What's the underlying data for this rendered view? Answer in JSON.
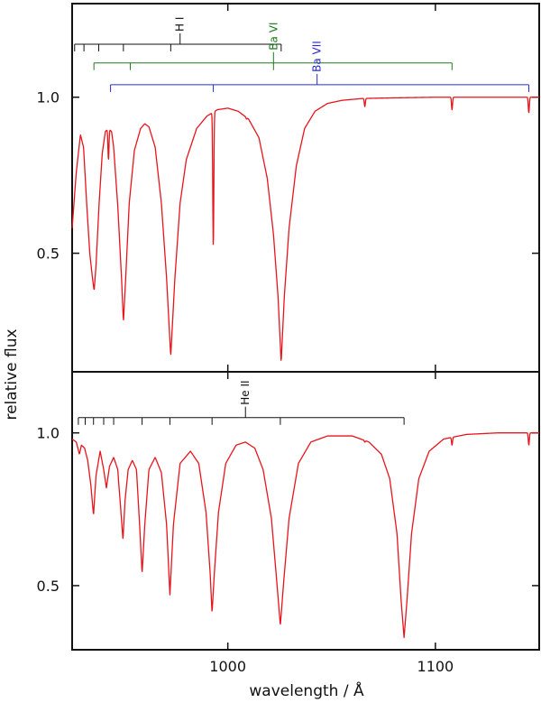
{
  "chart_data": {
    "type": "line",
    "xlabel": "wavelength / Å",
    "ylabel": "relative flux",
    "xlim": [
      925,
      1150
    ],
    "x_ticks": [
      1000,
      1100
    ],
    "series_color": "#e8141c",
    "panels": [
      {
        "id": "top",
        "ylim": [
          0.12,
          1.3
        ],
        "y_ticks": [
          0.5,
          1.0
        ],
        "y_tick_labels": [
          "0.5",
          "1.0"
        ],
        "line_ids": [
          {
            "label": "H I",
            "color": "#111111",
            "bar_y": 1.17,
            "label_x": 977,
            "positions": [
              926.2,
              930.7,
              937.8,
              949.7,
              972.5,
              1025.7
            ]
          },
          {
            "label": "Ba VI",
            "color": "#1e7a1e",
            "bar_y": 1.11,
            "label_x": 1022,
            "positions": [
              935.5,
              953.0,
              1022.0,
              1108.0
            ]
          },
          {
            "label": "Ba VII",
            "color": "#2a2acf",
            "bar_y": 1.04,
            "label_x": 1043,
            "positions": [
              943.5,
              993.0,
              1145.0
            ]
          }
        ],
        "continuum": [
          [
            925,
            0.58
          ],
          [
            927,
            0.76
          ],
          [
            929,
            0.88
          ],
          [
            930.5,
            0.84
          ],
          [
            932,
            0.66
          ],
          [
            933.5,
            0.5
          ],
          [
            934.8,
            0.42
          ],
          [
            935.6,
            0.38
          ],
          [
            936.5,
            0.46
          ],
          [
            938,
            0.66
          ],
          [
            939.5,
            0.82
          ],
          [
            941,
            0.89
          ],
          [
            942.5,
            0.9
          ],
          [
            944,
            0.89
          ],
          [
            945,
            0.84
          ],
          [
            947,
            0.65
          ],
          [
            948.8,
            0.42
          ],
          [
            949.7,
            0.28
          ],
          [
            950.8,
            0.42
          ],
          [
            952.5,
            0.66
          ],
          [
            955,
            0.83
          ],
          [
            958,
            0.9
          ],
          [
            960,
            0.915
          ],
          [
            962,
            0.905
          ],
          [
            965,
            0.84
          ],
          [
            968,
            0.66
          ],
          [
            970.5,
            0.42
          ],
          [
            972.5,
            0.17
          ],
          [
            974.5,
            0.42
          ],
          [
            977,
            0.66
          ],
          [
            980,
            0.8
          ],
          [
            985,
            0.9
          ],
          [
            990,
            0.94
          ],
          [
            995,
            0.96
          ],
          [
            1000,
            0.965
          ],
          [
            1005,
            0.955
          ],
          [
            1010,
            0.93
          ],
          [
            1015,
            0.87
          ],
          [
            1019,
            0.74
          ],
          [
            1022,
            0.56
          ],
          [
            1024.2,
            0.36
          ],
          [
            1025.7,
            0.15
          ],
          [
            1027.2,
            0.36
          ],
          [
            1029.5,
            0.58
          ],
          [
            1033,
            0.78
          ],
          [
            1037,
            0.9
          ],
          [
            1042,
            0.955
          ],
          [
            1048,
            0.98
          ],
          [
            1055,
            0.99
          ],
          [
            1065,
            0.996
          ],
          [
            1080,
            0.998
          ],
          [
            1100,
            1.0
          ],
          [
            1120,
            1.0
          ],
          [
            1150,
            1.0
          ]
        ],
        "narrow_lines": [
          [
            937.8,
            0.84
          ],
          [
            942.5,
            0.8
          ],
          [
            949.7,
            0.9
          ],
          [
            993.0,
            0.52
          ],
          [
            1009.0,
            0.93
          ],
          [
            1066.0,
            0.97
          ],
          [
            1108.0,
            0.96
          ],
          [
            1145.0,
            0.95
          ]
        ]
      },
      {
        "id": "bottom",
        "ylim": [
          0.29,
          1.2
        ],
        "y_ticks": [
          0.5,
          1.0
        ],
        "y_tick_labels": [
          "0.5",
          "1.0"
        ],
        "line_ids": [
          {
            "label": "He II",
            "color": "#111111",
            "bar_y": 1.05,
            "label_x": 1008.5,
            "positions": [
              928.0,
              931.3,
              935.3,
              940.2,
              945.0,
              958.7,
              972.1,
              992.4,
              1025.3,
              1084.9
            ]
          }
        ],
        "continuum": [
          [
            925,
            0.98
          ],
          [
            927,
            0.97
          ],
          [
            928.5,
            0.93
          ],
          [
            929.5,
            0.96
          ],
          [
            931,
            0.95
          ],
          [
            932.5,
            0.91
          ],
          [
            934,
            0.83
          ],
          [
            935.3,
            0.73
          ],
          [
            936.5,
            0.86
          ],
          [
            938.5,
            0.94
          ],
          [
            940.2,
            0.88
          ],
          [
            941.5,
            0.82
          ],
          [
            943,
            0.89
          ],
          [
            945,
            0.92
          ],
          [
            947,
            0.88
          ],
          [
            949.5,
            0.65
          ],
          [
            950.5,
            0.78
          ],
          [
            952,
            0.88
          ],
          [
            954,
            0.91
          ],
          [
            956,
            0.88
          ],
          [
            957.5,
            0.7
          ],
          [
            958.7,
            0.54
          ],
          [
            960,
            0.7
          ],
          [
            962,
            0.88
          ],
          [
            965,
            0.92
          ],
          [
            968,
            0.87
          ],
          [
            970.5,
            0.7
          ],
          [
            972.1,
            0.47
          ],
          [
            973.8,
            0.7
          ],
          [
            977,
            0.9
          ],
          [
            982,
            0.94
          ],
          [
            986,
            0.9
          ],
          [
            989.5,
            0.74
          ],
          [
            991.5,
            0.54
          ],
          [
            992.4,
            0.41
          ],
          [
            993.5,
            0.54
          ],
          [
            995.5,
            0.74
          ],
          [
            999,
            0.9
          ],
          [
            1004,
            0.96
          ],
          [
            1008.5,
            0.97
          ],
          [
            1013,
            0.95
          ],
          [
            1017,
            0.88
          ],
          [
            1021,
            0.72
          ],
          [
            1023.5,
            0.52
          ],
          [
            1025.3,
            0.37
          ],
          [
            1027,
            0.52
          ],
          [
            1029.5,
            0.72
          ],
          [
            1034,
            0.9
          ],
          [
            1040,
            0.97
          ],
          [
            1048,
            0.99
          ],
          [
            1060,
            0.99
          ],
          [
            1068,
            0.97
          ],
          [
            1074,
            0.93
          ],
          [
            1078,
            0.85
          ],
          [
            1081.5,
            0.67
          ],
          [
            1083.5,
            0.45
          ],
          [
            1084.9,
            0.33
          ],
          [
            1086.3,
            0.45
          ],
          [
            1088.5,
            0.67
          ],
          [
            1092,
            0.85
          ],
          [
            1097,
            0.94
          ],
          [
            1104,
            0.98
          ],
          [
            1115,
            0.995
          ],
          [
            1130,
            1.0
          ],
          [
            1150,
            1.0
          ]
        ],
        "narrow_lines": [
          [
            947.5,
            0.83
          ],
          [
            1066.0,
            0.97
          ],
          [
            1108.0,
            0.96
          ],
          [
            1145.0,
            0.96
          ]
        ]
      }
    ]
  }
}
